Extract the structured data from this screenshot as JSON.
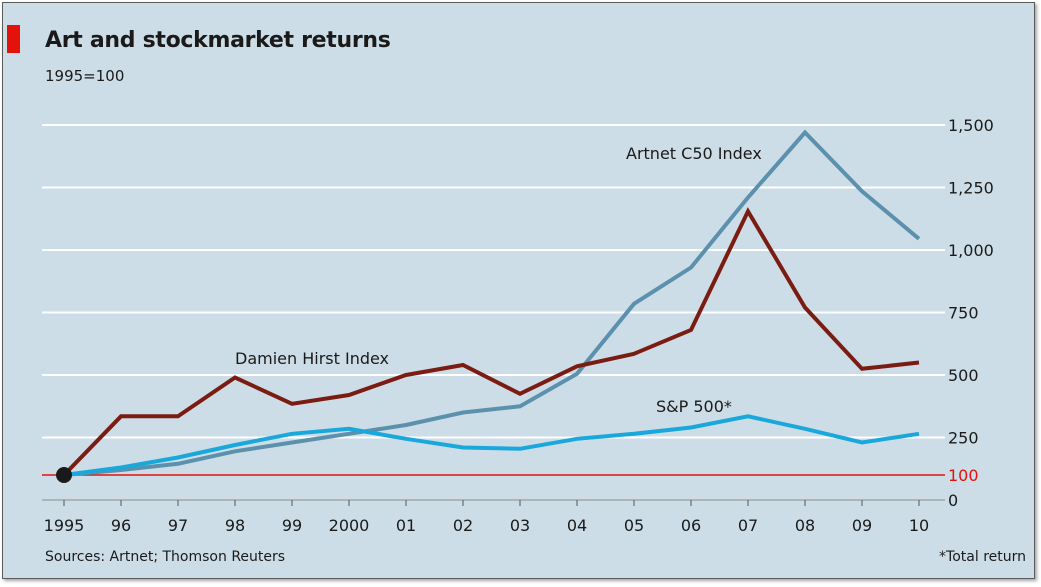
{
  "title": "Art and stockmarket returns",
  "subtitle": "1995=100",
  "source": "Sources: Artnet; Thomson Reuters",
  "footnote": "*Total return",
  "colors": {
    "background": "#cddde7",
    "gridline": "#ffffff",
    "baseline": "#e3120b",
    "artnet": "#5b91ad",
    "hirst": "#7b1c12",
    "sp500": "#1aa8dc",
    "accent": "#e3120b"
  },
  "chart_data": {
    "type": "line",
    "title": "Art and stockmarket returns",
    "subtitle": "1995=100",
    "x": [
      "1995",
      "96",
      "97",
      "98",
      "99",
      "2000",
      "01",
      "02",
      "03",
      "04",
      "05",
      "06",
      "07",
      "08",
      "09",
      "10"
    ],
    "ylim": [
      0,
      1500
    ],
    "yticks": [
      "1,500",
      "1,250",
      "1,000",
      "750",
      "500",
      "250",
      "100",
      "0"
    ],
    "ytick_values": [
      1500,
      1250,
      1000,
      750,
      500,
      250,
      100,
      0
    ],
    "grid": true,
    "series": [
      {
        "name": "Artnet C50 Index",
        "color": "#5b91ad",
        "values": [
          100,
          120,
          145,
          195,
          230,
          265,
          300,
          350,
          375,
          505,
          785,
          930,
          1210,
          1470,
          1235,
          1045
        ]
      },
      {
        "name": "Damien Hirst Index",
        "color": "#7b1c12",
        "values": [
          100,
          335,
          335,
          490,
          385,
          420,
          500,
          540,
          425,
          535,
          585,
          680,
          1155,
          770,
          525,
          550
        ]
      },
      {
        "name": "S&P 500*",
        "color": "#1aa8dc",
        "values": [
          100,
          130,
          170,
          220,
          265,
          285,
          245,
          210,
          205,
          245,
          265,
          290,
          335,
          285,
          230,
          265
        ]
      }
    ]
  }
}
